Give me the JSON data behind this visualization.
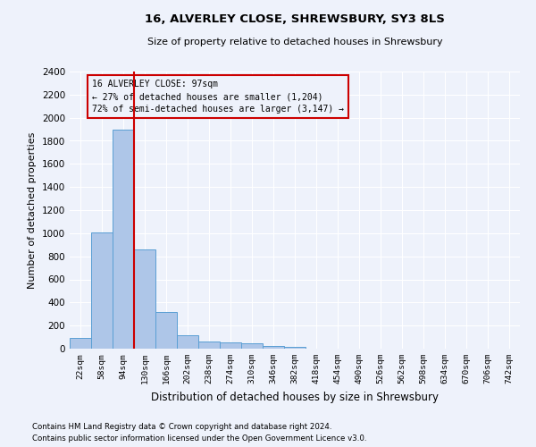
{
  "title": "16, ALVERLEY CLOSE, SHREWSBURY, SY3 8LS",
  "subtitle": "Size of property relative to detached houses in Shrewsbury",
  "xlabel": "Distribution of detached houses by size in Shrewsbury",
  "ylabel": "Number of detached properties",
  "footnote1": "Contains HM Land Registry data © Crown copyright and database right 2024.",
  "footnote2": "Contains public sector information licensed under the Open Government Licence v3.0.",
  "bin_labels": [
    "22sqm",
    "58sqm",
    "94sqm",
    "130sqm",
    "166sqm",
    "202sqm",
    "238sqm",
    "274sqm",
    "310sqm",
    "346sqm",
    "382sqm",
    "418sqm",
    "454sqm",
    "490sqm",
    "526sqm",
    "562sqm",
    "598sqm",
    "634sqm",
    "670sqm",
    "706sqm",
    "742sqm"
  ],
  "bar_heights": [
    95,
    1010,
    1895,
    860,
    315,
    120,
    60,
    52,
    45,
    25,
    18,
    0,
    0,
    0,
    0,
    0,
    0,
    0,
    0,
    0,
    0
  ],
  "bar_color": "#aec6e8",
  "bar_edge_color": "#5a9fd4",
  "ylim": [
    0,
    2400
  ],
  "yticks": [
    0,
    200,
    400,
    600,
    800,
    1000,
    1200,
    1400,
    1600,
    1800,
    2000,
    2200,
    2400
  ],
  "property_line_color": "#cc0000",
  "annotation_text1": "16 ALVERLEY CLOSE: 97sqm",
  "annotation_text2": "← 27% of detached houses are smaller (1,204)",
  "annotation_text3": "72% of semi-detached houses are larger (3,147) →",
  "annotation_box_color": "#cc0000",
  "background_color": "#eef2fb",
  "grid_color": "#ffffff"
}
